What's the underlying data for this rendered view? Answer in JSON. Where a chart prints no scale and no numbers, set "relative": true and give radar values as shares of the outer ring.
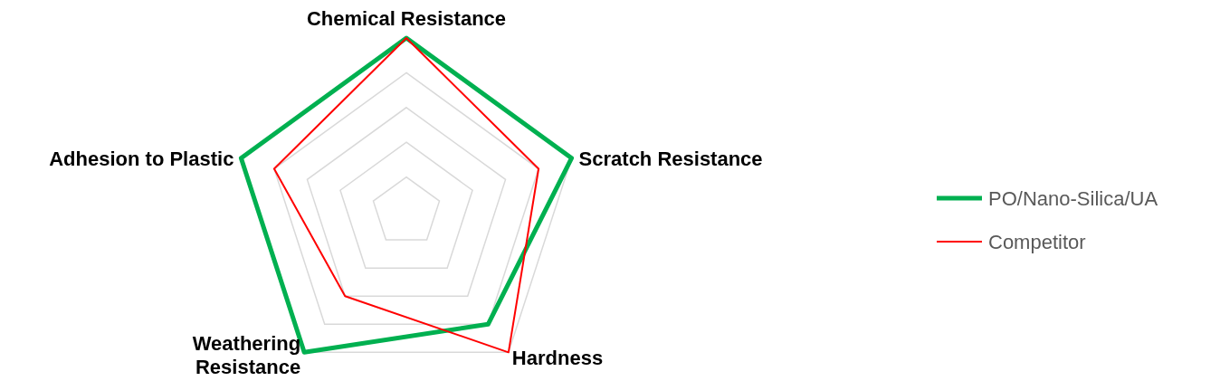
{
  "chart_data": {
    "type": "radar",
    "relative": true,
    "grid": true,
    "legend": "right",
    "categories": [
      "Chemical Resistance",
      "Scratch Resistance",
      "Hardness",
      "Weathering Resistance",
      "Adhesion to Plastic"
    ],
    "series": [
      {
        "name": "PO/Nano-Silica/UA",
        "color": "#00b050",
        "values": [
          1,
          1,
          0.8,
          1,
          1
        ]
      },
      {
        "name": "Competitor",
        "color": "#ff0000",
        "values": [
          1,
          0.8,
          1,
          0.6,
          0.8
        ]
      }
    ]
  }
}
